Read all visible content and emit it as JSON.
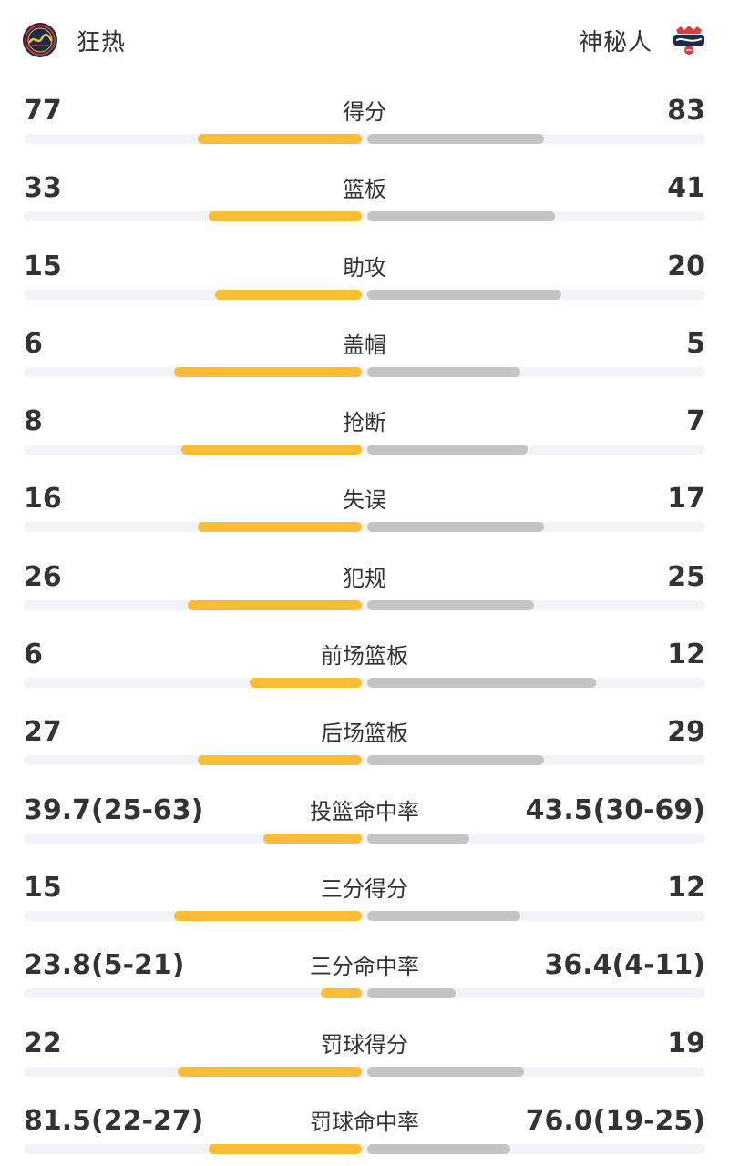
{
  "header": {
    "home": {
      "name": "狂热",
      "logo": "fever-logo-icon"
    },
    "away": {
      "name": "神秘人",
      "logo": "mystics-logo-icon"
    }
  },
  "colors": {
    "home_bar": "#fbbd34",
    "away_bar": "#c4c4c4",
    "track": "#f1f3f6"
  },
  "stats": [
    {
      "label": "得分",
      "home": "77",
      "away": "83",
      "home_pct": 0.48,
      "away_pct": 0.52
    },
    {
      "label": "篮板",
      "home": "33",
      "away": "41",
      "home_pct": 0.45,
      "away_pct": 0.55
    },
    {
      "label": "助攻",
      "home": "15",
      "away": "20",
      "home_pct": 0.43,
      "away_pct": 0.57
    },
    {
      "label": "盖帽",
      "home": "6",
      "away": "5",
      "home_pct": 0.55,
      "away_pct": 0.45
    },
    {
      "label": "抢断",
      "home": "8",
      "away": "7",
      "home_pct": 0.53,
      "away_pct": 0.47
    },
    {
      "label": "失误",
      "home": "16",
      "away": "17",
      "home_pct": 0.48,
      "away_pct": 0.52
    },
    {
      "label": "犯规",
      "home": "26",
      "away": "25",
      "home_pct": 0.51,
      "away_pct": 0.49
    },
    {
      "label": "前场篮板",
      "home": "6",
      "away": "12",
      "home_pct": 0.33,
      "away_pct": 0.67
    },
    {
      "label": "后场篮板",
      "home": "27",
      "away": "29",
      "home_pct": 0.48,
      "away_pct": 0.52
    },
    {
      "label": "投篮命中率",
      "home": "39.7(25-63)",
      "away": "43.5(30-69)",
      "home_pct": 0.29,
      "away_pct": 0.3
    },
    {
      "label": "三分得分",
      "home": "15",
      "away": "12",
      "home_pct": 0.55,
      "away_pct": 0.45
    },
    {
      "label": "三分命中率",
      "home": "23.8(5-21)",
      "away": "36.4(4-11)",
      "home_pct": 0.12,
      "away_pct": 0.26
    },
    {
      "label": "罚球得分",
      "home": "22",
      "away": "19",
      "home_pct": 0.54,
      "away_pct": 0.46
    },
    {
      "label": "罚球命中率",
      "home": "81.5(22-27)",
      "away": "76.0(19-25)",
      "home_pct": 0.45,
      "away_pct": 0.42
    }
  ]
}
